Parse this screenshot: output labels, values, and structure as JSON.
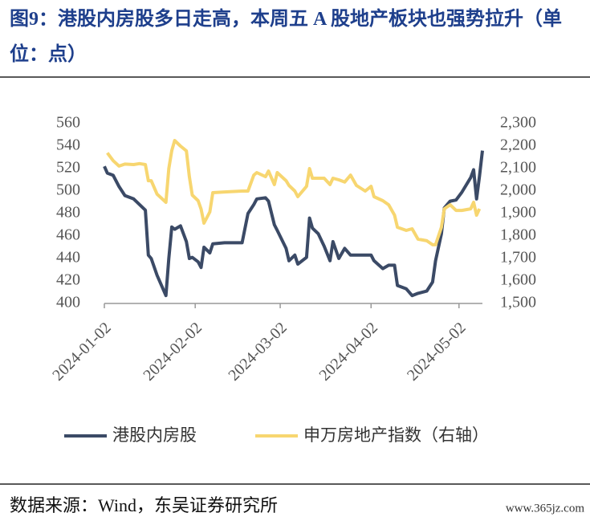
{
  "chart_data": {
    "type": "line",
    "title": "图9：港股内房股多日走高，本周五 A 股地产板块也强势拉升（单位：点）",
    "x": [
      "2024-01-02",
      "2024-01-03",
      "2024-01-05",
      "2024-01-07",
      "2024-01-09",
      "2024-01-12",
      "2024-01-14",
      "2024-01-16",
      "2024-01-17",
      "2024-01-18",
      "2024-01-20",
      "2024-01-23",
      "2024-01-24",
      "2024-01-25",
      "2024-01-26",
      "2024-01-28",
      "2024-01-30",
      "2024-01-31",
      "2024-02-01",
      "2024-02-03",
      "2024-02-04",
      "2024-02-05",
      "2024-02-07",
      "2024-02-08",
      "2024-02-12",
      "2024-02-18",
      "2024-02-20",
      "2024-02-22",
      "2024-02-23",
      "2024-02-26",
      "2024-02-27",
      "2024-02-29",
      "2024-03-01",
      "2024-03-04",
      "2024-03-05",
      "2024-03-07",
      "2024-03-08",
      "2024-03-11",
      "2024-03-12",
      "2024-03-13",
      "2024-03-15",
      "2024-03-17",
      "2024-03-19",
      "2024-03-20",
      "2024-03-22",
      "2024-03-24",
      "2024-03-26",
      "2024-03-28",
      "2024-03-31",
      "2024-04-02",
      "2024-04-03",
      "2024-04-06",
      "2024-04-08",
      "2024-04-10",
      "2024-04-11",
      "2024-04-14",
      "2024-04-16",
      "2024-04-18",
      "2024-04-21",
      "2024-04-23",
      "2024-04-24",
      "2024-04-26",
      "2024-04-27",
      "2024-04-29",
      "2024-05-01",
      "2024-05-03",
      "2024-05-06",
      "2024-05-07",
      "2024-05-08",
      "2024-05-09",
      "2024-05-10"
    ],
    "series": [
      {
        "name": "港股内房股",
        "color": "#3b4a66",
        "axis": "y",
        "values": [
          522,
          516,
          514,
          504,
          496,
          493,
          488,
          483,
          443,
          440,
          425,
          407,
          440,
          468,
          466,
          469,
          455,
          440,
          441,
          437,
          432,
          450,
          445,
          453,
          454,
          454,
          480,
          488,
          493,
          494,
          491,
          470,
          465,
          449,
          438,
          443,
          435,
          441,
          476,
          467,
          462,
          451,
          438,
          455,
          440,
          449,
          443,
          443,
          443,
          443,
          438,
          431,
          434,
          434,
          416,
          413,
          407,
          409,
          411,
          419,
          438,
          462,
          485,
          491,
          492,
          499,
          512,
          519,
          493,
          513,
          536
        ]
      },
      {
        "name": "申万房地产指数（右轴）",
        "color": "#f7d670",
        "axis": "y2",
        "values": [
          null,
          2170,
          2135,
          2111,
          2120,
          2118,
          2122,
          2118,
          2046,
          2046,
          1986,
          1950,
          2100,
          2180,
          2225,
          2200,
          2179,
          2064,
          1982,
          1957,
          1920,
          1857,
          1907,
          1993,
          1996,
          2000,
          2000,
          2071,
          2082,
          2064,
          2089,
          2029,
          2082,
          2046,
          2025,
          2000,
          1975,
          2021,
          2100,
          2057,
          2057,
          2057,
          2029,
          2057,
          2050,
          2040,
          2071,
          2025,
          2000,
          2021,
          1975,
          1957,
          1939,
          1893,
          1839,
          1825,
          1832,
          1786,
          1779,
          1761,
          1761,
          1839,
          1921,
          1939,
          1914,
          1914,
          1921,
          1950,
          1893,
          1921,
          null
        ]
      }
    ],
    "xlim": [
      "2024-01-02",
      "2024-05-10"
    ],
    "xticks": [
      "2024-01-02",
      "2024-02-02",
      "2024-03-02",
      "2024-04-02",
      "2024-05-02"
    ],
    "ylim": [
      400,
      560
    ],
    "yticks": [
      400,
      420,
      440,
      460,
      480,
      500,
      520,
      540,
      560
    ],
    "y2lim": [
      1500,
      2300
    ],
    "y2ticks": [
      {
        "value": 1500,
        "label": "1,500"
      },
      {
        "value": 1600,
        "label": "1,600"
      },
      {
        "value": 1700,
        "label": "1,700"
      },
      {
        "value": 1800,
        "label": "1,800"
      },
      {
        "value": 1900,
        "label": "1,900"
      },
      {
        "value": 2000,
        "label": "2,000"
      },
      {
        "value": 2100,
        "label": "2,100"
      },
      {
        "value": 2200,
        "label": "2,200"
      },
      {
        "value": 2300,
        "label": "2,300"
      }
    ],
    "grid": false,
    "legend": "bottom",
    "source": "数据来源：Wind，东吴证券研究所",
    "watermark": "www.365jz.com"
  }
}
